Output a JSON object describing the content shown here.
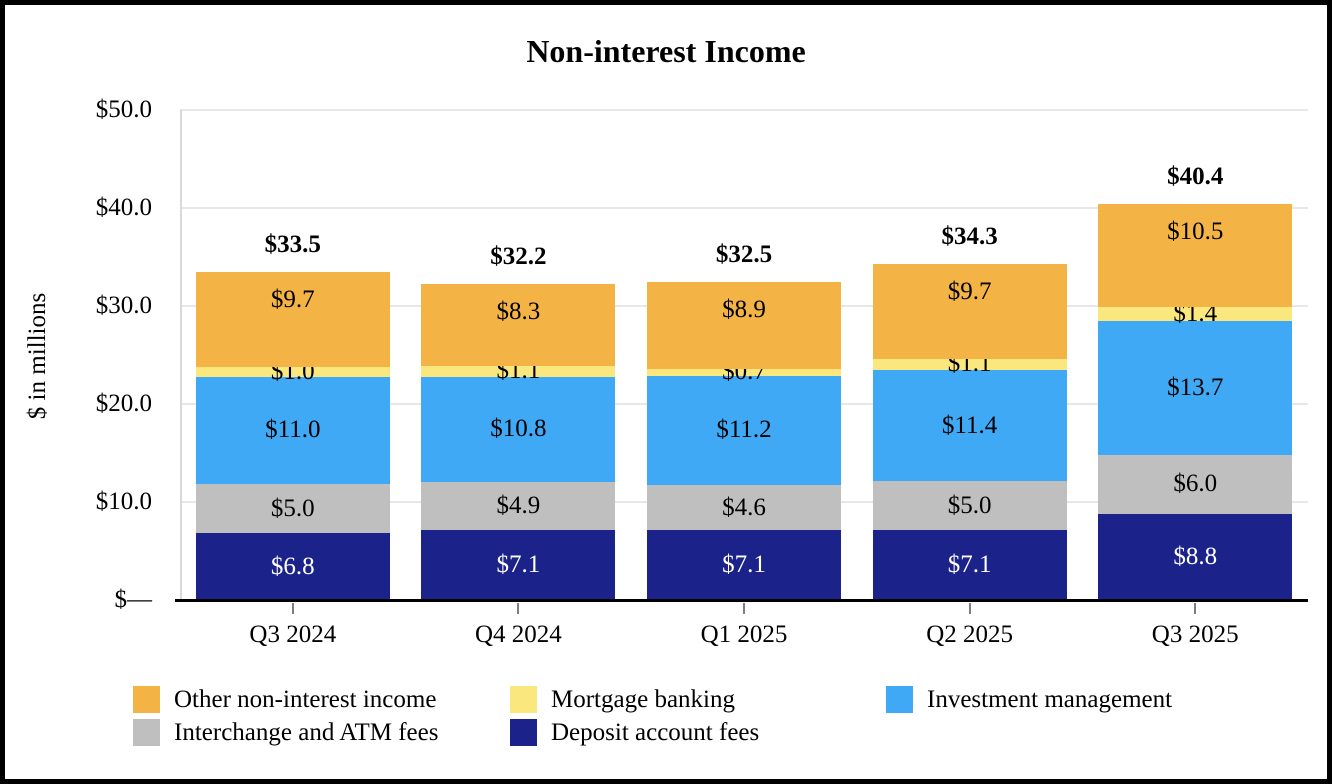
{
  "chart_data": {
    "type": "bar",
    "stacked": true,
    "title": "Non-interest Income",
    "ylabel": "$ in millions",
    "ylim": [
      0,
      50
    ],
    "grid": true,
    "yticks": [
      {
        "value": 50,
        "label": "$50.0"
      },
      {
        "value": 40,
        "label": "$40.0"
      },
      {
        "value": 30,
        "label": "$30.0"
      },
      {
        "value": 20,
        "label": "$20.0"
      },
      {
        "value": 10,
        "label": "$10.0"
      },
      {
        "value": 0,
        "label": "$—"
      }
    ],
    "categories": [
      "Q3 2024",
      "Q4 2024",
      "Q1 2025",
      "Q2 2025",
      "Q3 2025"
    ],
    "series": [
      {
        "name": "Deposit account fees",
        "color": "#1b2289",
        "label_color": "#ffffff",
        "values": [
          6.8,
          7.1,
          7.1,
          7.1,
          8.8
        ]
      },
      {
        "name": "Interchange and ATM fees",
        "color": "#bfbfbf",
        "label_color": "#000000",
        "values": [
          5.0,
          4.9,
          4.6,
          5.0,
          6.0
        ]
      },
      {
        "name": "Investment management",
        "color": "#3fa9f5",
        "label_color": "#000000",
        "values": [
          11.0,
          10.8,
          11.2,
          11.4,
          13.7
        ]
      },
      {
        "name": "Mortgage banking",
        "color": "#fae87e",
        "label_color": "#000000",
        "values": [
          1.0,
          1.1,
          0.7,
          1.1,
          1.4
        ]
      },
      {
        "name": "Other non-interest income",
        "color": "#f4b445",
        "label_color": "#000000",
        "values": [
          9.7,
          8.3,
          8.9,
          9.7,
          10.5
        ]
      }
    ],
    "totals": [
      33.5,
      32.2,
      32.5,
      34.3,
      40.4
    ],
    "value_prefix": "$",
    "legend_position": "bottom",
    "legend_rows": [
      [
        "Other non-interest income",
        "Mortgage banking",
        "Investment management"
      ],
      [
        "Interchange and ATM fees",
        "Deposit account fees"
      ]
    ]
  }
}
